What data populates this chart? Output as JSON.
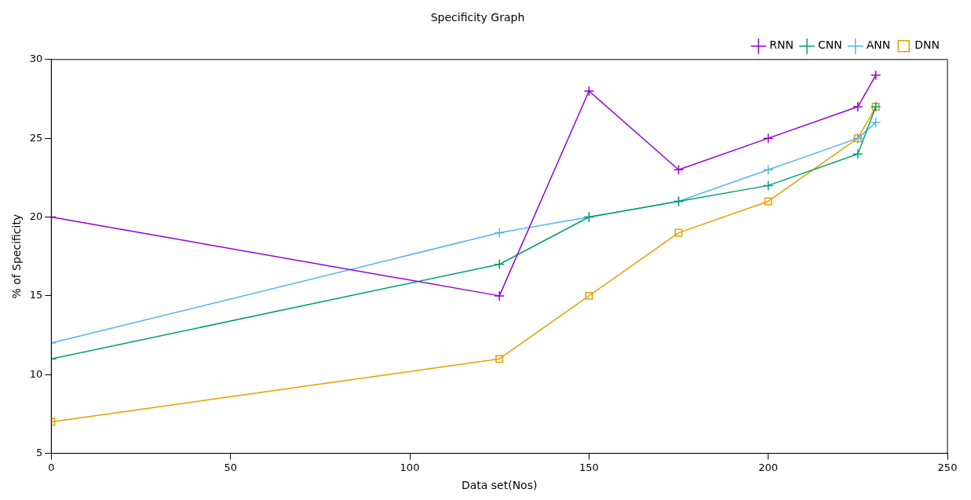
{
  "chart_data": {
    "type": "line",
    "title": "Specificity Graph",
    "xlabel": "Data set(Nos)",
    "ylabel": "% of Specificity",
    "x": [
      0,
      125,
      150,
      175,
      200,
      225,
      230
    ],
    "series": [
      {
        "name": "RNN",
        "color": "#9400d3",
        "marker": "cross",
        "values": [
          20,
          15,
          28,
          23,
          25,
          27,
          29
        ]
      },
      {
        "name": "CNN",
        "color": "#009e73",
        "marker": "cross",
        "values": [
          11,
          17,
          20,
          21,
          22,
          24,
          27
        ]
      },
      {
        "name": "ANN",
        "color": "#56b4e9",
        "marker": "cross",
        "values": [
          12,
          19,
          20,
          21,
          23,
          25,
          26
        ]
      },
      {
        "name": "DNN",
        "color": "#e69f00",
        "marker": "square",
        "values": [
          7,
          11,
          15,
          19,
          21,
          25,
          27
        ]
      }
    ],
    "xlim": [
      0,
      250
    ],
    "xticks": [
      0,
      50,
      100,
      150,
      200,
      250
    ],
    "ylim": [
      5,
      30
    ],
    "yticks": [
      5,
      10,
      15,
      20,
      25,
      30
    ],
    "grid": false,
    "legend": "top right"
  }
}
